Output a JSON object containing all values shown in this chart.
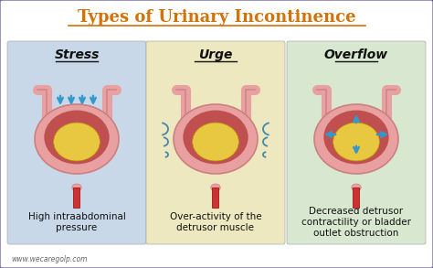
{
  "title": "Types of Urinary Incontinence",
  "title_color": "#D4720A",
  "title_fontsize": 13,
  "bg_color": "#ffffff",
  "border_color": "#7B6FAA",
  "panel_colors": [
    "#C8D8E8",
    "#EEE8C0",
    "#D8E8D0"
  ],
  "panel_titles": [
    "Stress",
    "Urge",
    "Overflow"
  ],
  "panel_captions": [
    "High intraabdominal\npressure",
    "Over-activity of the\ndetrusor muscle",
    "Decreased detrusor\ncontractility or bladder\noutlet obstruction"
  ],
  "caption_fontsize": 7.5,
  "watermark": "www.wecaregolp.com",
  "arrow_color": "#3399CC",
  "bladder_outer_color": "#E8A0A0",
  "bladder_inner_color": "#C05050",
  "urine_color": "#E8C840",
  "tube_color": "#CC3333"
}
